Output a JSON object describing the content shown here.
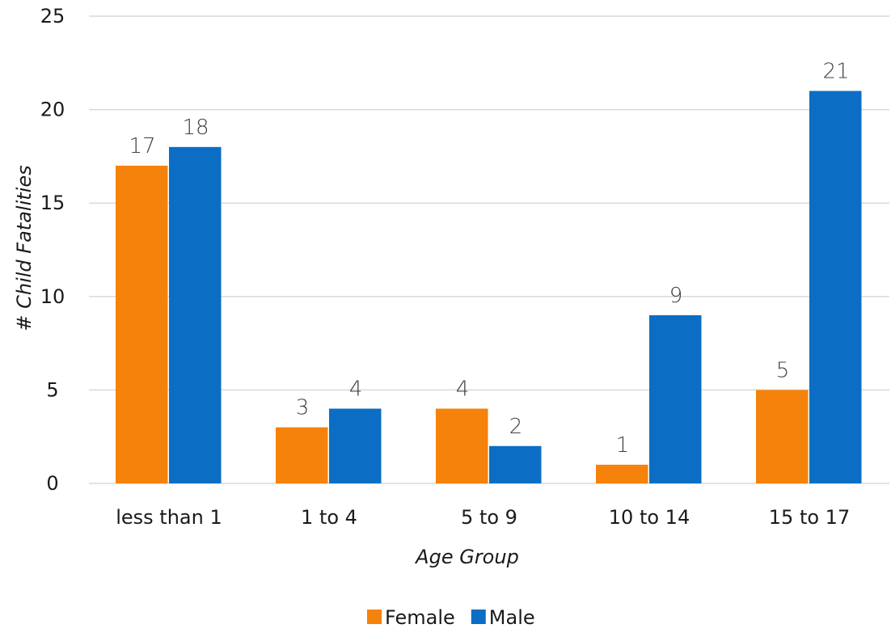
{
  "chart_data": {
    "type": "bar",
    "categories": [
      "less than 1",
      "1 to 4",
      "5 to 9",
      "10 to 14",
      "15 to 17"
    ],
    "series": [
      {
        "name": "Female",
        "values": [
          17,
          3,
          4,
          1,
          5
        ],
        "color": "#f5820a"
      },
      {
        "name": "Male",
        "values": [
          18,
          4,
          2,
          9,
          21
        ],
        "color": "#0b6ec4"
      }
    ],
    "xlabel": "Age Group",
    "ylabel": "# Child Fatalities",
    "ylim": [
      0,
      25
    ],
    "yticks": [
      0,
      5,
      10,
      15,
      20,
      25
    ],
    "grid": true,
    "legend_position": "bottom-center",
    "data_labels": true
  }
}
